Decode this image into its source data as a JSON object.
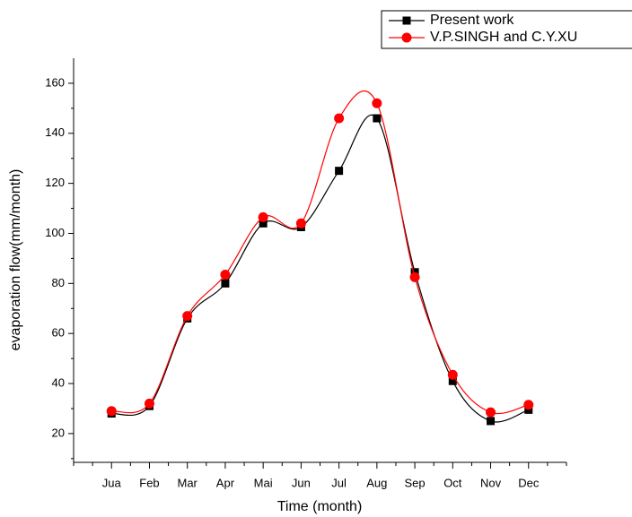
{
  "chart_data": {
    "type": "line",
    "xlabel": "Time (month)",
    "ylabel": "evaporation flow(mm/month)",
    "categories": [
      "Jua",
      "Feb",
      "Mar",
      "Apr",
      "Mai",
      "Jun",
      "Jul",
      "Aug",
      "Sep",
      "Oct",
      "Nov",
      "Dec"
    ],
    "series": [
      {
        "name": "Present work",
        "color": "#000000",
        "marker": "square",
        "values": [
          28,
          31,
          66,
          80,
          104,
          102.5,
          125,
          146,
          84.5,
          41,
          25,
          29.5
        ]
      },
      {
        "name": "V.P.SINGH and C.Y.XU",
        "color": "#ff0000",
        "marker": "circle",
        "values": [
          29,
          32,
          67,
          83.5,
          106.5,
          104,
          146,
          152,
          82.5,
          43.5,
          28.5,
          31.5
        ]
      }
    ],
    "ylim": [
      8.5,
      170
    ],
    "yticks": [
      20,
      40,
      60,
      80,
      100,
      120,
      140,
      160
    ],
    "legend": "top-right"
  }
}
